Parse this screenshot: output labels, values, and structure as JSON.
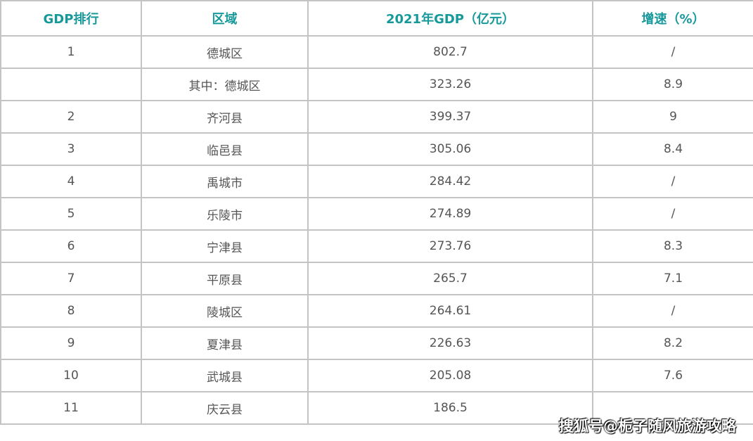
{
  "table": {
    "headers": [
      "GDP排行",
      "区域",
      "2021年GDP（亿元）",
      "增速（%）"
    ],
    "rows": [
      [
        "1",
        "德城区",
        "802.7",
        "/"
      ],
      [
        "",
        "其中：德城区",
        "323.26",
        "8.9"
      ],
      [
        "2",
        "齐河县",
        "399.37",
        "9"
      ],
      [
        "3",
        "临邑县",
        "305.06",
        "8.4"
      ],
      [
        "4",
        "禹城市",
        "284.42",
        "/"
      ],
      [
        "5",
        "乐陵市",
        "274.89",
        "/"
      ],
      [
        "6",
        "宁津县",
        "273.76",
        "8.3"
      ],
      [
        "7",
        "平原县",
        "265.7",
        "7.1"
      ],
      [
        "8",
        "陵城区",
        "264.61",
        "/"
      ],
      [
        "9",
        "夏津县",
        "226.63",
        "8.2"
      ],
      [
        "10",
        "武城县",
        "205.08",
        "7.6"
      ],
      [
        "11",
        "庆云县",
        "186.5",
        ""
      ]
    ]
  },
  "watermark": "搜狐号@栀子随风旅游攻略",
  "colors": {
    "header": "#17999b",
    "text": "#555555",
    "border": "#c4c4c4"
  }
}
